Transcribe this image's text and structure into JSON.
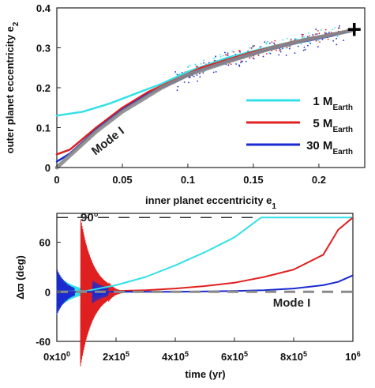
{
  "chart_data": [
    {
      "type": "line",
      "xlabel": "inner planet eccentricity e",
      "xlabel_sub": "1",
      "ylabel": "outer planet eccentricity e",
      "ylabel_sub": "2",
      "xlim": [
        0,
        0.235
      ],
      "ylim": [
        0,
        0.4
      ],
      "xticks": [
        0,
        0.05,
        0.1,
        0.15,
        0.2
      ],
      "xtick_labels": [
        "0",
        "0.05",
        "0.1",
        "0.15",
        "0.2"
      ],
      "yticks": [
        0,
        0.1,
        0.2,
        0.3,
        0.4
      ],
      "ytick_labels": [
        "0",
        "0.1",
        "0.2",
        "0.3",
        "0.4"
      ],
      "legend": {
        "placement": "right",
        "entries": [
          {
            "text": "1 M",
            "sub": "Earth",
            "color": "#33e0e8"
          },
          {
            "text": "5 M",
            "sub": "Earth",
            "color": "#e02020"
          },
          {
            "text": "30 M",
            "sub": "Earth",
            "color": "#1a2ad0"
          }
        ]
      },
      "annotations": [
        {
          "text": "Mode I",
          "x": 0.015,
          "y": 0.03
        }
      ],
      "marker": {
        "symbol": "+",
        "x": 0.227,
        "y": 0.345
      },
      "series": [
        {
          "color": "#8a8a8a",
          "style": "thick",
          "x": [
            0,
            0.01,
            0.03,
            0.05,
            0.08,
            0.1,
            0.13,
            0.16,
            0.19,
            0.21,
            0.227
          ],
          "y": [
            0,
            0.03,
            0.09,
            0.14,
            0.2,
            0.232,
            0.265,
            0.295,
            0.32,
            0.333,
            0.345
          ]
        },
        {
          "color": "#33e0e8",
          "x": [
            0,
            0.02,
            0.04,
            0.06,
            0.08,
            0.1,
            0.13,
            0.16,
            0.19,
            0.227
          ],
          "y": [
            0.13,
            0.14,
            0.16,
            0.185,
            0.21,
            0.24,
            0.275,
            0.3,
            0.323,
            0.345
          ]
        },
        {
          "color": "#e02020",
          "x": [
            0,
            0.01,
            0.03,
            0.05,
            0.07,
            0.09,
            0.11,
            0.13,
            0.15,
            0.18,
            0.21,
            0.227
          ],
          "y": [
            0.033,
            0.045,
            0.1,
            0.15,
            0.19,
            0.22,
            0.25,
            0.27,
            0.29,
            0.315,
            0.335,
            0.345
          ]
        },
        {
          "color": "#1a2ad0",
          "x": [
            0,
            0.01,
            0.03,
            0.05,
            0.07,
            0.09,
            0.11,
            0.13,
            0.15,
            0.18,
            0.21,
            0.227
          ],
          "y": [
            0.015,
            0.035,
            0.095,
            0.145,
            0.185,
            0.215,
            0.245,
            0.265,
            0.285,
            0.31,
            0.33,
            0.345
          ]
        }
      ]
    },
    {
      "type": "line",
      "xlabel": "time (yr)",
      "ylabel": "Δϖ (deg)",
      "xlim": [
        0,
        1000000
      ],
      "ylim": [
        -60,
        95
      ],
      "xticks": [
        0,
        200000,
        400000,
        600000,
        800000,
        1000000
      ],
      "xtick_base": [
        "0x10",
        "2x10",
        "4x10",
        "6x10",
        "8x10",
        "10"
      ],
      "xtick_exp": [
        "0",
        "5",
        "5",
        "5",
        "5",
        "6"
      ],
      "yticks": [
        -60,
        0,
        60
      ],
      "ytick_labels": [
        "-60",
        "0",
        "60"
      ],
      "hline": {
        "y": 90,
        "label": "90°"
      },
      "annotations": [
        {
          "text": "Mode I",
          "x": 730000,
          "y": -18
        }
      ],
      "series": [
        {
          "color": "#33e0e8",
          "x": [
            0,
            100000,
            200000,
            300000,
            400000,
            500000,
            600000,
            690000,
            800000,
            1000000
          ],
          "y": [
            0,
            1,
            8,
            18,
            32,
            48,
            66,
            90,
            90,
            90
          ]
        },
        {
          "color": "#e02020",
          "x": [
            0,
            100000,
            200000,
            300000,
            400000,
            500000,
            600000,
            700000,
            800000,
            900000,
            950000,
            1000000
          ],
          "y": [
            0,
            0,
            1,
            2,
            4,
            7,
            11,
            18,
            27,
            45,
            75,
            90
          ]
        },
        {
          "color": "#1a2ad0",
          "x": [
            0,
            200000,
            400000,
            600000,
            700000,
            800000,
            900000,
            950000,
            1000000
          ],
          "y": [
            0,
            0,
            0,
            1,
            2,
            4,
            8,
            12,
            20
          ]
        },
        {
          "color": "#8a8a8a",
          "style": "dashed",
          "x": [
            0,
            1000000
          ],
          "y": [
            0,
            0
          ]
        }
      ]
    }
  ]
}
